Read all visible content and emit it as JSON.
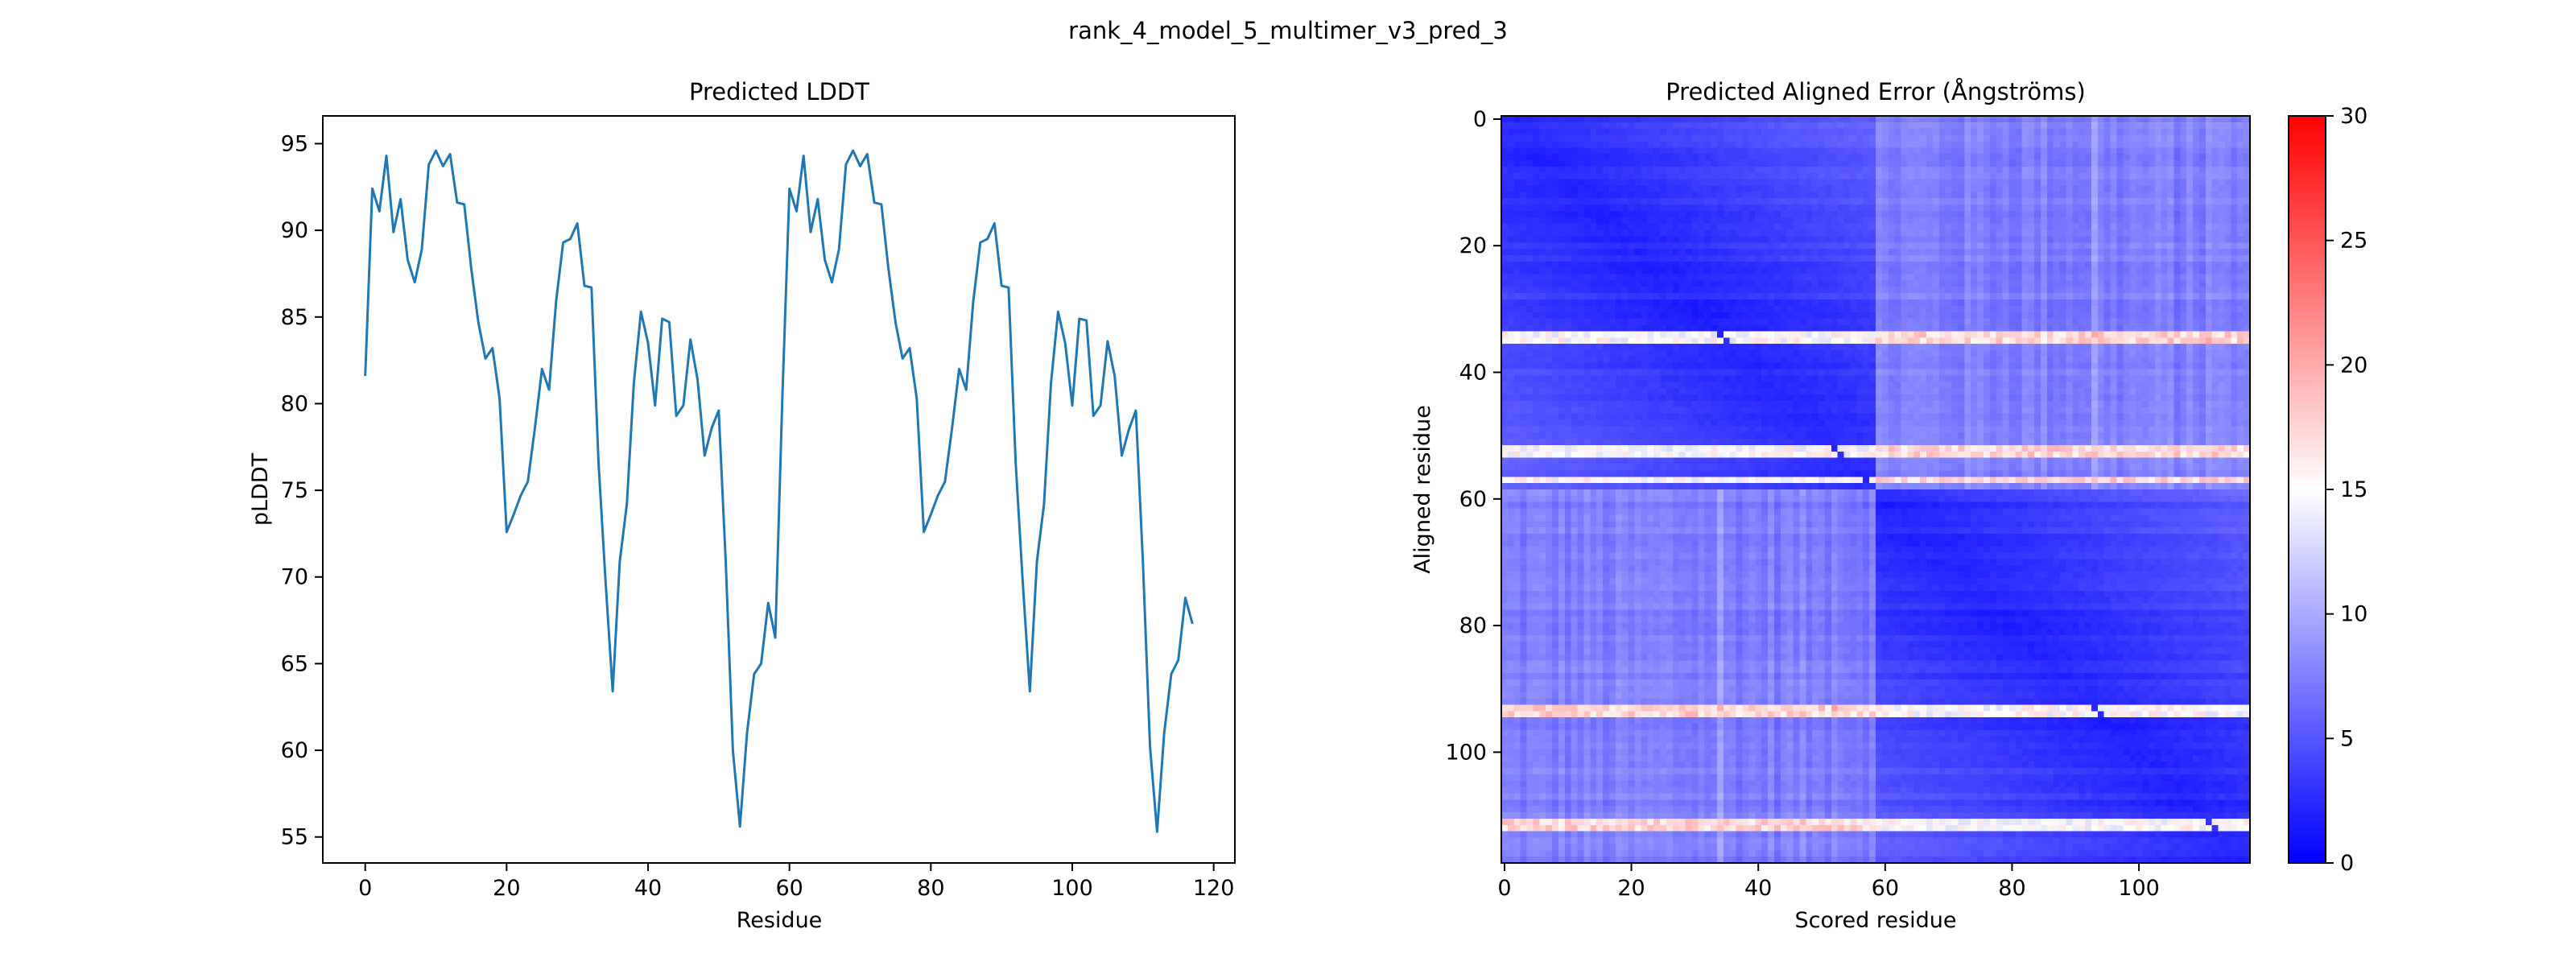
{
  "figure": {
    "suptitle": "rank_4_model_5_multimer_v3_pred_3"
  },
  "chart_data": [
    {
      "type": "line",
      "title": "Predicted LDDT",
      "xlabel": "Residue",
      "ylabel": "pLDDT",
      "xlim": [
        -6,
        123
      ],
      "ylim": [
        53.5,
        96.6
      ],
      "xticks": [
        0,
        20,
        40,
        60,
        80,
        100,
        120
      ],
      "yticks": [
        55,
        60,
        65,
        70,
        75,
        80,
        85,
        90,
        95
      ],
      "grid": false,
      "color": "#1f77b4",
      "x_start": 0,
      "values": [
        81.6,
        92.4,
        91.1,
        94.3,
        89.9,
        91.8,
        88.3,
        87.0,
        88.9,
        93.8,
        94.6,
        93.7,
        94.4,
        91.6,
        91.5,
        87.8,
        84.7,
        82.6,
        83.2,
        80.3,
        72.6,
        73.6,
        74.7,
        75.5,
        78.6,
        82.0,
        80.8,
        85.9,
        89.3,
        89.5,
        90.4,
        86.8,
        86.7,
        76.6,
        69.7,
        63.4,
        70.9,
        74.2,
        81.2,
        85.3,
        83.5,
        79.9,
        84.9,
        84.7,
        79.3,
        79.9,
        83.7,
        81.4,
        77.0,
        78.6,
        79.6,
        70.8,
        60.0,
        55.6,
        61.0,
        64.4,
        65.0,
        68.5,
        66.5,
        80.4,
        92.4,
        91.1,
        94.3,
        89.9,
        91.8,
        88.3,
        87.0,
        88.9,
        93.8,
        94.6,
        93.7,
        94.4,
        91.6,
        91.5,
        87.8,
        84.7,
        82.6,
        83.2,
        80.3,
        72.6,
        73.6,
        74.7,
        75.5,
        78.6,
        82.0,
        80.8,
        85.9,
        89.3,
        89.5,
        90.4,
        86.8,
        86.7,
        76.6,
        69.7,
        63.4,
        70.9,
        74.2,
        81.2,
        85.3,
        83.5,
        79.9,
        84.9,
        84.8,
        79.3,
        79.9,
        83.6,
        81.6,
        77.0,
        78.5,
        79.6,
        70.8,
        60.2,
        55.3,
        61.0,
        64.4,
        65.2,
        68.8,
        67.3
      ]
    },
    {
      "type": "heatmap",
      "title": "Predicted Aligned Error (Ångströms)",
      "xlabel": "Scored residue",
      "ylabel": "Aligned residue",
      "n": 118,
      "chain_break": 59,
      "xticks": [
        0,
        20,
        40,
        60,
        80,
        100
      ],
      "yticks": [
        0,
        20,
        40,
        60,
        80,
        100
      ],
      "colormap": "bwr",
      "colorbar": {
        "min": 0,
        "max": 30,
        "ticks": [
          0,
          5,
          10,
          15,
          20,
          25,
          30
        ]
      },
      "high_error_rows": [
        34,
        35,
        52,
        53,
        57,
        93,
        94,
        111,
        112
      ],
      "notes_on_pattern": "low error (blue) within each chain block, diagonal minimum; higher error between chains"
    }
  ]
}
